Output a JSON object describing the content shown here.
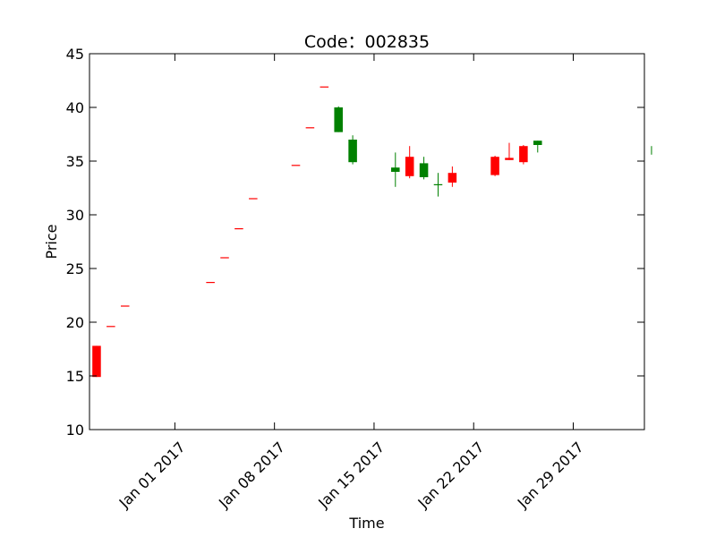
{
  "chart_data": {
    "type": "candlestick",
    "title": "Code：002835",
    "xlabel": "Time",
    "ylabel": "Price",
    "ylim": [
      10,
      45
    ],
    "xlim": [
      "2016-12-26",
      "2017-02-03"
    ],
    "yticks": [
      "10",
      "15",
      "20",
      "25",
      "30",
      "35",
      "40",
      "45"
    ],
    "xticks": [
      {
        "date": "2017-01-01",
        "label": "Jan 01 2017"
      },
      {
        "date": "2017-01-08",
        "label": "Jan 08 2017"
      },
      {
        "date": "2017-01-15",
        "label": "Jan 15 2017"
      },
      {
        "date": "2017-01-22",
        "label": "Jan 22 2017"
      },
      {
        "date": "2017-01-29",
        "label": "Jan 29 2017"
      }
    ],
    "up_color": "#ff0000",
    "down_color": "#008000",
    "series": [
      {
        "date": "2016-12-26",
        "open": 14.9,
        "high": 17.8,
        "low": 14.9,
        "close": 17.8
      },
      {
        "date": "2016-12-27",
        "open": 19.6,
        "high": 19.6,
        "low": 19.6,
        "close": 19.6
      },
      {
        "date": "2016-12-28",
        "open": 21.5,
        "high": 21.5,
        "low": 21.5,
        "close": 21.5
      },
      {
        "date": "2017-01-03",
        "open": 23.7,
        "high": 23.7,
        "low": 23.7,
        "close": 23.7
      },
      {
        "date": "2017-01-04",
        "open": 26.0,
        "high": 26.0,
        "low": 26.0,
        "close": 26.0
      },
      {
        "date": "2017-01-05",
        "open": 28.7,
        "high": 28.7,
        "low": 28.7,
        "close": 28.7
      },
      {
        "date": "2017-01-06",
        "open": 31.5,
        "high": 31.5,
        "low": 31.5,
        "close": 31.5
      },
      {
        "date": "2017-01-09",
        "open": 34.6,
        "high": 34.6,
        "low": 34.6,
        "close": 34.6
      },
      {
        "date": "2017-01-10",
        "open": 38.1,
        "high": 38.1,
        "low": 38.1,
        "close": 38.1
      },
      {
        "date": "2017-01-11",
        "open": 41.9,
        "high": 41.9,
        "low": 41.9,
        "close": 41.9
      },
      {
        "date": "2017-01-12",
        "open": 40.0,
        "high": 40.1,
        "low": 37.7,
        "close": 37.7
      },
      {
        "date": "2017-01-13",
        "open": 37.0,
        "high": 37.4,
        "low": 34.7,
        "close": 34.9
      },
      {
        "date": "2017-01-16",
        "open": 34.4,
        "high": 35.8,
        "low": 32.6,
        "close": 34.0
      },
      {
        "date": "2017-01-17",
        "open": 33.6,
        "high": 36.4,
        "low": 33.4,
        "close": 35.4
      },
      {
        "date": "2017-01-18",
        "open": 34.8,
        "high": 35.4,
        "low": 33.3,
        "close": 33.5
      },
      {
        "date": "2017-01-19",
        "open": 32.8,
        "high": 33.9,
        "low": 31.7,
        "close": 32.7
      },
      {
        "date": "2017-01-20",
        "open": 33.0,
        "high": 34.5,
        "low": 32.6,
        "close": 33.9
      },
      {
        "date": "2017-01-23",
        "open": 33.7,
        "high": 35.5,
        "low": 33.6,
        "close": 35.4
      },
      {
        "date": "2017-01-24",
        "open": 35.1,
        "high": 36.7,
        "low": 35.1,
        "close": 35.3
      },
      {
        "date": "2017-01-25",
        "open": 34.9,
        "high": 36.5,
        "low": 34.7,
        "close": 36.4
      },
      {
        "date": "2017-01-26",
        "open": 36.9,
        "high": 36.9,
        "low": 35.8,
        "close": 36.5
      },
      {
        "date": "2017-02-03",
        "open": 36.4,
        "high": 36.4,
        "low": 35.6,
        "close": 35.6
      }
    ]
  }
}
